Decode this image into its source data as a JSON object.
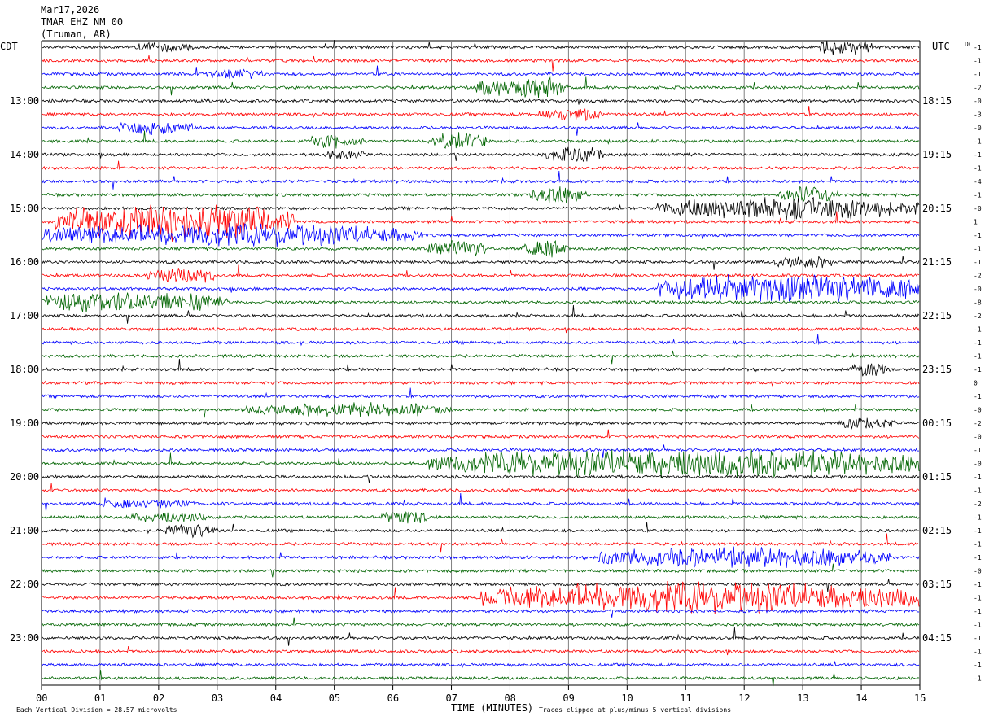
{
  "header": {
    "date": "Mar17,2026",
    "station": "TMAR EHZ NM 00",
    "location": "(Truman, AR)"
  },
  "labels": {
    "left_tz": "CDT",
    "right_tz": "UTC",
    "dc": "DC",
    "x_title": "TIME (MINUTES)",
    "scale_note": "Each Vertical Division =   28.57 microvolts",
    "clip_note": "Traces clipped at plus/minus 5 vertical divisions"
  },
  "colors": {
    "black": "#000000",
    "red": "#ff0000",
    "blue": "#0000ff",
    "green": "#006400",
    "grid": "#808080"
  },
  "chart_data": {
    "type": "helicorder",
    "x_ticks": [
      "00",
      "01",
      "02",
      "03",
      "04",
      "05",
      "06",
      "07",
      "08",
      "09",
      "10",
      "11",
      "12",
      "13",
      "14",
      "15"
    ],
    "xlim": [
      0,
      15
    ],
    "trace_count": 48,
    "trace_color_cycle": [
      "black",
      "red",
      "blue",
      "green"
    ],
    "left_hour_labels": [
      "13:00",
      "14:00",
      "15:00",
      "16:00",
      "17:00",
      "18:00",
      "19:00",
      "20:00",
      "21:00",
      "22:00",
      "23:00"
    ],
    "right_hour_labels": [
      "18:15",
      "19:15",
      "20:15",
      "21:15",
      "22:15",
      "23:15",
      "00:15",
      "01:15",
      "02:15",
      "03:15",
      "04:15"
    ],
    "dc_offsets": [
      "-1",
      "-1",
      "-1",
      "-2",
      "-0",
      "-3",
      "-0",
      "-1",
      "-1",
      "-1",
      "-4",
      "-1",
      "-0",
      "1",
      "-1",
      "-1",
      "-1",
      "-2",
      "-0",
      "-8",
      "-2",
      "-1",
      "-1",
      "-1",
      "-1",
      "0",
      "-1",
      "-0",
      "-2",
      "-0",
      "-1",
      "-0",
      "-1",
      "-1",
      "-2",
      "-1",
      "-1",
      "-1",
      "-1",
      "-0",
      "-1",
      "-1",
      "-1",
      "-1",
      "-1",
      "-1",
      "-1",
      "-1"
    ],
    "events": [
      {
        "trace": 0,
        "start": 1.6,
        "end": 2.6,
        "level": 1.3
      },
      {
        "trace": 0,
        "start": 13.3,
        "end": 14.2,
        "level": 2.5
      },
      {
        "trace": 2,
        "start": 2.8,
        "end": 3.8,
        "level": 1.3
      },
      {
        "trace": 3,
        "start": 7.4,
        "end": 9.0,
        "level": 3.2
      },
      {
        "trace": 5,
        "start": 8.5,
        "end": 9.6,
        "level": 1.8
      },
      {
        "trace": 6,
        "start": 1.3,
        "end": 2.6,
        "level": 2.0
      },
      {
        "trace": 7,
        "start": 4.6,
        "end": 5.5,
        "level": 2.0
      },
      {
        "trace": 7,
        "start": 6.6,
        "end": 7.6,
        "level": 2.5
      },
      {
        "trace": 8,
        "start": 4.8,
        "end": 5.5,
        "level": 1.5
      },
      {
        "trace": 8,
        "start": 8.6,
        "end": 9.6,
        "level": 2.5
      },
      {
        "trace": 11,
        "start": 8.3,
        "end": 9.3,
        "level": 2.5
      },
      {
        "trace": 11,
        "start": 12.6,
        "end": 13.6,
        "level": 2.5
      },
      {
        "trace": 12,
        "start": 10.5,
        "end": 15.0,
        "level": 3.5
      },
      {
        "trace": 13,
        "start": 0.2,
        "end": 4.3,
        "level": 6.0
      },
      {
        "trace": 14,
        "start": 0.0,
        "end": 6.5,
        "level": 3.5
      },
      {
        "trace": 15,
        "start": 6.6,
        "end": 7.6,
        "level": 2.5
      },
      {
        "trace": 15,
        "start": 8.2,
        "end": 9.0,
        "level": 2.5
      },
      {
        "trace": 16,
        "start": 12.5,
        "end": 13.5,
        "level": 2.0
      },
      {
        "trace": 17,
        "start": 1.8,
        "end": 3.0,
        "level": 2.5
      },
      {
        "trace": 18,
        "start": 10.5,
        "end": 15.0,
        "level": 4.5
      },
      {
        "trace": 19,
        "start": 0.0,
        "end": 3.2,
        "level": 3.2
      },
      {
        "trace": 24,
        "start": 13.8,
        "end": 14.5,
        "level": 2.0
      },
      {
        "trace": 27,
        "start": 3.5,
        "end": 7.0,
        "level": 2.0
      },
      {
        "trace": 28,
        "start": 13.6,
        "end": 14.6,
        "level": 1.8
      },
      {
        "trace": 31,
        "start": 6.6,
        "end": 15.0,
        "level": 4.5
      },
      {
        "trace": 34,
        "start": 1.0,
        "end": 2.6,
        "level": 1.2
      },
      {
        "trace": 35,
        "start": 1.5,
        "end": 2.8,
        "level": 1.5
      },
      {
        "trace": 35,
        "start": 5.8,
        "end": 6.6,
        "level": 2.0
      },
      {
        "trace": 36,
        "start": 2.1,
        "end": 3.0,
        "level": 2.0
      },
      {
        "trace": 38,
        "start": 9.5,
        "end": 14.5,
        "level": 3.0
      },
      {
        "trace": 41,
        "start": 7.5,
        "end": 15.0,
        "level": 5.0
      }
    ]
  }
}
